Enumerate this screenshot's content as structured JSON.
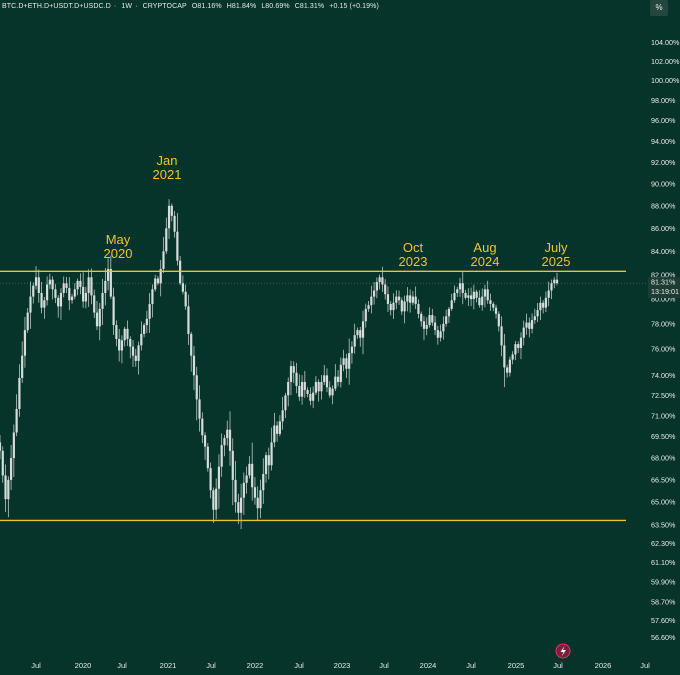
{
  "header": {
    "symbol": "BTC.D+ETH.D+USDT.D+USDC.D",
    "interval": "1W",
    "source": "CRYPTOCAP",
    "open": "O81.16%",
    "high": "H81.84%",
    "low": "L80.69%",
    "close": "C81.31%",
    "change": "+0.15 (+0.19%)",
    "separator": "·"
  },
  "toolbar": {
    "scale_label": "%"
  },
  "price_label": {
    "value": "81.31%",
    "countdown": "13:19:01"
  },
  "colors": {
    "background": "#06332a",
    "candle": "#d6dcd9",
    "resistance_line": "#f2c12e",
    "annotation": "#f4c430",
    "label_box": "#1d3d33"
  },
  "chart_data": {
    "type": "candlestick",
    "title": "",
    "xlabel": "",
    "ylabel": "",
    "ylim": [
      56.0,
      105.0
    ],
    "y_scale": "log",
    "y_ticks": [
      "104.00%",
      "102.00%",
      "100.00%",
      "98.00%",
      "96.00%",
      "94.00%",
      "92.00%",
      "90.00%",
      "88.00%",
      "86.00%",
      "84.00%",
      "82.00%",
      "80.00%",
      "78.00%",
      "76.00%",
      "74.00%",
      "72.50%",
      "71.00%",
      "69.50%",
      "68.00%",
      "66.50%",
      "65.00%",
      "63.50%",
      "62.30%",
      "61.10%",
      "59.90%",
      "58.70%",
      "57.60%",
      "56.60%"
    ],
    "x_ticks": [
      "Jul",
      "2020",
      "Jul",
      "2021",
      "Jul",
      "2022",
      "Jul",
      "2023",
      "Jul",
      "2024",
      "Jul",
      "2025",
      "Jul",
      "2026",
      "Jul"
    ],
    "horizontal_lines": [
      82.3,
      63.8
    ],
    "annotations": [
      "May 2020",
      "Jan 2021",
      "Oct 2023",
      "Aug 2024",
      "July 2025"
    ],
    "last_value": 81.31,
    "series": [
      {
        "values": [
          68.5,
          66.8,
          65.2,
          66.5,
          68.0,
          69.8,
          71.5,
          73.8,
          75.5,
          77.5,
          78.9,
          80.2,
          81.1,
          81.8,
          80.5,
          79.3,
          79.9,
          81.2,
          81.6,
          80.8,
          80.1,
          79.4,
          80.5,
          81.3,
          80.9,
          79.9,
          80.2,
          80.8,
          81.5,
          81.0,
          79.8,
          80.5,
          81.8,
          80.3,
          78.9,
          77.8,
          79.2,
          80.5,
          81.5,
          82.5,
          80.2,
          77.9,
          76.8,
          75.9,
          76.7,
          77.6,
          76.8,
          76.2,
          75.5,
          75.1,
          76.3,
          77.2,
          77.9,
          78.4,
          79.6,
          80.8,
          81.7,
          81.3,
          82.5,
          84.0,
          86.0,
          88.0,
          87.1,
          85.7,
          83.2,
          81.3,
          80.6,
          79.4,
          77.2,
          75.5,
          74.0,
          72.2,
          70.8,
          69.6,
          68.8,
          67.3,
          65.8,
          64.5,
          65.9,
          67.4,
          68.9,
          69.4,
          70.0,
          68.5,
          66.5,
          65.0,
          64.3,
          65.3,
          66.3,
          66.8,
          67.6,
          66.0,
          65.3,
          64.6,
          65.8,
          66.9,
          68.2,
          67.5,
          69.1,
          70.3,
          69.7,
          70.6,
          71.4,
          72.5,
          73.5,
          74.7,
          74.2,
          73.2,
          72.4,
          73.5,
          72.9,
          72.6,
          72.1,
          72.7,
          73.5,
          72.8,
          73.5,
          74.0,
          73.1,
          72.5,
          73.0,
          73.9,
          73.5,
          74.8,
          75.3,
          74.5,
          75.7,
          76.2,
          77.1,
          77.5,
          76.9,
          78.2,
          79.2,
          79.5,
          80.2,
          80.7,
          81.4,
          81.8,
          81.2,
          80.4,
          79.6,
          79.1,
          79.7,
          80.2,
          79.9,
          79.0,
          79.8,
          80.3,
          79.7,
          80.2,
          79.6,
          78.8,
          78.2,
          77.6,
          77.9,
          78.7,
          78.1,
          77.5,
          76.9,
          77.4,
          78.0,
          78.6,
          79.2,
          79.9,
          80.5,
          80.8,
          81.3,
          80.5,
          80.1,
          80.3,
          80.0,
          80.6,
          80.1,
          79.5,
          80.2,
          80.8,
          79.9,
          79.6,
          79.3,
          78.8,
          77.8,
          76.3,
          74.6,
          74.2,
          75.2,
          75.6,
          76.4,
          76.1,
          76.9,
          77.7,
          78.1,
          77.6,
          78.3,
          78.6,
          79.1,
          79.7,
          79.3,
          80.1,
          80.7,
          81.3,
          81.6,
          81.31
        ]
      }
    ]
  }
}
